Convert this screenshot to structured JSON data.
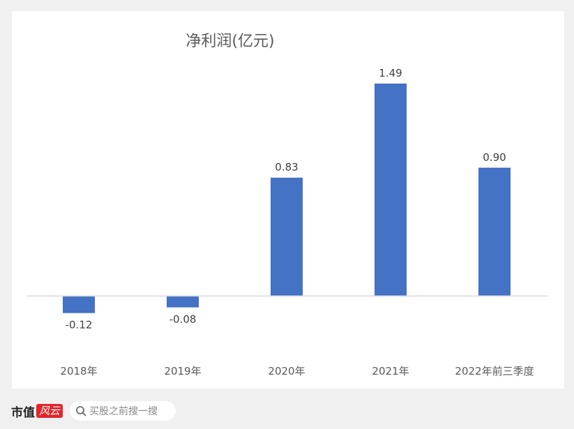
{
  "chart_data": {
    "type": "bar",
    "title": "净利润(亿元)",
    "categories": [
      "2018年",
      "2019年",
      "2020年",
      "2021年",
      "2022年前三季度"
    ],
    "values": [
      -0.12,
      -0.08,
      0.83,
      1.49,
      0.9
    ],
    "value_labels": [
      "-0.12",
      "-0.08",
      "0.83",
      "1.49",
      "0.90"
    ],
    "xlabel": "",
    "ylabel": "",
    "ylim": [
      -0.4,
      1.65
    ],
    "grid": false,
    "bar_color": "#4472c4"
  },
  "watermark": "市值风云",
  "footer": {
    "logo_text": "市值",
    "logo_badge": "风云",
    "search_placeholder": "买股之前搜一搜",
    "search_icon": "search-icon"
  }
}
